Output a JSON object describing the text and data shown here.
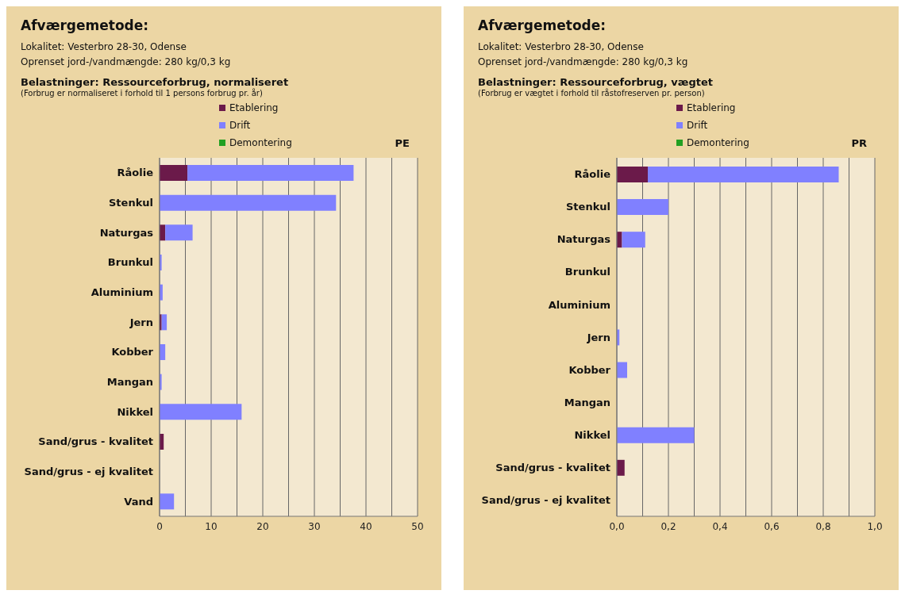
{
  "chart_data": [
    {
      "type": "bar",
      "orientation": "horizontal",
      "stacked": true,
      "title": "Afværgemetode:",
      "subtitle": "Belastninger: Ressourceforbrug, normaliseret",
      "annotations": [
        "Lokalitet: Vesterbro 28-30, Odense",
        "Oprenset jord-/vandmængde: 280 kg/0,3 kg",
        "(Forbrug er normaliseret i forhold til 1 persons forbrug pr. år)"
      ],
      "xlabel": "PE",
      "categories": [
        "Råolie",
        "Stenkul",
        "Naturgas",
        "Brunkul",
        "Aluminium",
        "Jern",
        "Kobber",
        "Mangan",
        "Nikkel",
        "Sand/grus - kvalitet",
        "Sand/grus - ej kvalitet",
        "Vand"
      ],
      "series": [
        {
          "name": "Etablering",
          "color": "#6b1a4a",
          "values": [
            5.4,
            null,
            1.1,
            0,
            null,
            0.4,
            0,
            0,
            0,
            0.8,
            0,
            0
          ]
        },
        {
          "name": "Drift",
          "color": "#8080ff",
          "values": [
            32.2,
            34.2,
            5.3,
            0.4,
            0.6,
            1.0,
            1.1,
            0.4,
            15.9,
            0,
            0,
            2.8
          ]
        },
        {
          "name": "Demontering",
          "color": "#22a022",
          "values": [
            0,
            0,
            0,
            0,
            0,
            0,
            0,
            0,
            0,
            0,
            0,
            0
          ]
        }
      ],
      "xlim": [
        0,
        50
      ],
      "xticks": [
        0,
        {
          "value": 5,
          "label": null
        },
        10,
        {
          "value": 15,
          "label": null
        },
        20,
        {
          "value": 25,
          "label": null
        },
        30,
        {
          "value": 35,
          "label": null
        },
        40,
        {
          "value": 45,
          "label": null
        },
        50
      ],
      "grid": "x",
      "legend": "top"
    },
    {
      "type": "bar",
      "orientation": "horizontal",
      "stacked": true,
      "title": "Afværgemetode:",
      "subtitle": "Belastninger: Ressourceforbrug, vægtet",
      "annotations": [
        "Lokalitet: Vesterbro 28-30, Odense",
        "Oprenset jord-/vandmængde: 280 kg/0,3 kg",
        "(Forbrug er vægtet i forhold til råstofreserven pr. person)"
      ],
      "xlabel": "PR",
      "categories": [
        "Råolie",
        "Stenkul",
        "Naturgas",
        "Brunkul",
        "Aluminium",
        "Jern",
        "Kobber",
        "Mangan",
        "Nikkel",
        "Sand/grus - kvalitet",
        "Sand/grus - ej kvalitet"
      ],
      "series": [
        {
          "name": "Etablering",
          "color": "#6b1a4a",
          "values": [
            0.12,
            0,
            0.02,
            0,
            0,
            null,
            0,
            0,
            0,
            0.03,
            0
          ]
        },
        {
          "name": "Drift",
          "color": "#8080ff",
          "values": [
            0.74,
            0.2,
            0.09,
            0,
            0,
            0.01,
            0.04,
            0,
            0.3,
            0,
            0
          ]
        },
        {
          "name": "Demontering",
          "color": "#22a022",
          "values": [
            0,
            0,
            0,
            0,
            0,
            0,
            0,
            0,
            0,
            0,
            0
          ]
        }
      ],
      "xlim": [
        0,
        1.0
      ],
      "xticks": [
        {
          "value": 0,
          "label": "0,0"
        },
        {
          "value": 0.1,
          "label": null
        },
        {
          "value": 0.2,
          "label": "0,2"
        },
        {
          "value": 0.3,
          "label": null
        },
        {
          "value": 0.4,
          "label": "0,4"
        },
        {
          "value": 0.5,
          "label": null
        },
        {
          "value": 0.6,
          "label": "0,6"
        },
        {
          "value": 0.7,
          "label": null
        },
        {
          "value": 0.8,
          "label": "0,8"
        },
        {
          "value": 0.9,
          "label": null
        },
        {
          "value": 1.0,
          "label": "1,0"
        }
      ],
      "grid": "x",
      "legend": "top"
    }
  ]
}
